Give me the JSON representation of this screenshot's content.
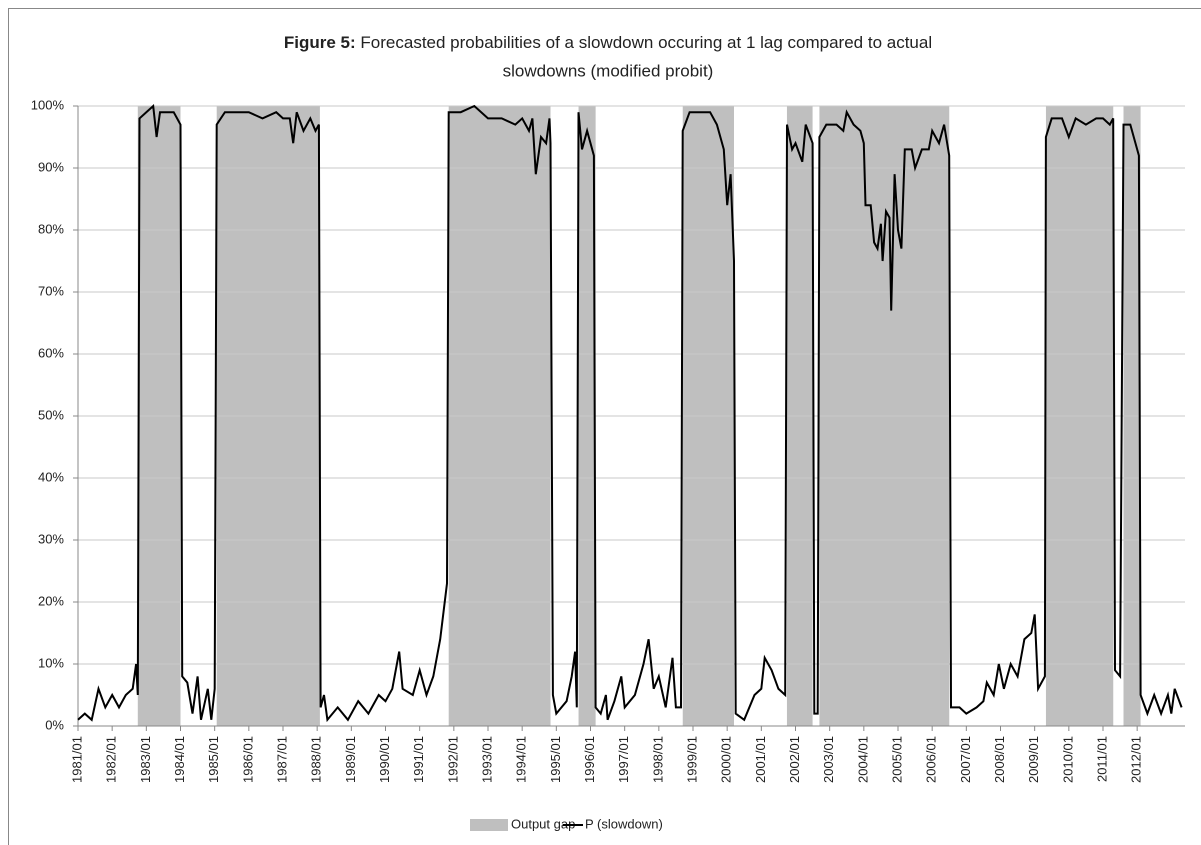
{
  "chart_data": {
    "type": "line",
    "title_label": "Figure 5:",
    "title": "Forecasted probabilities of a slowdown occuring at 1 lag compared to actual",
    "title_line2": "slowdowns (modified probit)",
    "xlim": [
      1981,
      2013.4
    ],
    "ylim": [
      0,
      100
    ],
    "grid": true,
    "legend": "bottom",
    "yticks": [
      {
        "value": 0,
        "label": "0%"
      },
      {
        "value": 10,
        "label": "10%"
      },
      {
        "value": 20,
        "label": "20%"
      },
      {
        "value": 30,
        "label": "30%"
      },
      {
        "value": 40,
        "label": "40%"
      },
      {
        "value": 50,
        "label": "50%"
      },
      {
        "value": 60,
        "label": "60%"
      },
      {
        "value": 70,
        "label": "70%"
      },
      {
        "value": 80,
        "label": "80%"
      },
      {
        "value": 90,
        "label": "90%"
      },
      {
        "value": 100,
        "label": "100%"
      }
    ],
    "xticks": [
      {
        "value": 1981,
        "label": "1981/01"
      },
      {
        "value": 1982,
        "label": "1982/01"
      },
      {
        "value": 1983,
        "label": "1983/01"
      },
      {
        "value": 1984,
        "label": "1984/01"
      },
      {
        "value": 1985,
        "label": "1985/01"
      },
      {
        "value": 1986,
        "label": "1986/01"
      },
      {
        "value": 1987,
        "label": "1987/01"
      },
      {
        "value": 1988,
        "label": "1988/01"
      },
      {
        "value": 1989,
        "label": "1989/01"
      },
      {
        "value": 1990,
        "label": "1990/01"
      },
      {
        "value": 1991,
        "label": "1991/01"
      },
      {
        "value": 1992,
        "label": "1992/01"
      },
      {
        "value": 1993,
        "label": "1993/01"
      },
      {
        "value": 1994,
        "label": "1994/01"
      },
      {
        "value": 1995,
        "label": "1995/01"
      },
      {
        "value": 1996,
        "label": "1996/01"
      },
      {
        "value": 1997,
        "label": "1997/01"
      },
      {
        "value": 1998,
        "label": "1998/01"
      },
      {
        "value": 1999,
        "label": "1999/01"
      },
      {
        "value": 2000,
        "label": "2000/01"
      },
      {
        "value": 2001,
        "label": "2001/01"
      },
      {
        "value": 2002,
        "label": "2002/01"
      },
      {
        "value": 2003,
        "label": "2003/01"
      },
      {
        "value": 2004,
        "label": "2004/01"
      },
      {
        "value": 2005,
        "label": "2005/01"
      },
      {
        "value": 2006,
        "label": "2006/01"
      },
      {
        "value": 2007,
        "label": "2007/01"
      },
      {
        "value": 2008,
        "label": "2008/01"
      },
      {
        "value": 2009,
        "label": "2009/01"
      },
      {
        "value": 2010,
        "label": "2010/01"
      },
      {
        "value": 2011,
        "label": "2011/01"
      },
      {
        "value": 2012,
        "label": "2012/01"
      }
    ],
    "series": [
      {
        "name": "Output gap",
        "color": "#bfbfbf",
        "periods": [
          [
            1982.75,
            1984.0
          ],
          [
            1985.06,
            1988.08
          ],
          [
            1991.85,
            1994.83
          ],
          [
            1995.65,
            1996.15
          ],
          [
            1998.7,
            2000.2
          ],
          [
            2001.75,
            2002.5
          ],
          [
            2002.7,
            2006.5
          ],
          [
            2009.33,
            2011.3
          ],
          [
            2011.6,
            2012.1
          ]
        ]
      },
      {
        "name": "P (slowdown)",
        "color": "#000000",
        "x": [
          1981.0,
          1981.2,
          1981.4,
          1981.6,
          1981.8,
          1982.0,
          1982.2,
          1982.4,
          1982.6,
          1982.7,
          1982.75,
          1982.8,
          1983.0,
          1983.2,
          1983.3,
          1983.4,
          1983.6,
          1983.8,
          1983.9,
          1984.0,
          1984.05,
          1984.2,
          1984.35,
          1984.5,
          1984.6,
          1984.8,
          1984.9,
          1985.0,
          1985.06,
          1985.3,
          1985.6,
          1986.0,
          1986.4,
          1986.8,
          1987.0,
          1987.2,
          1987.3,
          1987.4,
          1987.6,
          1987.8,
          1987.95,
          1988.05,
          1988.1,
          1988.2,
          1988.3,
          1988.6,
          1988.9,
          1989.2,
          1989.5,
          1989.8,
          1990.0,
          1990.2,
          1990.4,
          1990.5,
          1990.8,
          1991.0,
          1991.2,
          1991.4,
          1991.6,
          1991.8,
          1991.85,
          1992.2,
          1992.6,
          1993.0,
          1993.4,
          1993.8,
          1994.0,
          1994.2,
          1994.3,
          1994.4,
          1994.55,
          1994.7,
          1994.8,
          1994.83,
          1994.9,
          1995.0,
          1995.3,
          1995.45,
          1995.55,
          1995.6,
          1995.65,
          1995.75,
          1995.9,
          1996.1,
          1996.15,
          1996.3,
          1996.45,
          1996.5,
          1996.7,
          1996.9,
          1997.0,
          1997.3,
          1997.55,
          1997.7,
          1997.85,
          1998.0,
          1998.2,
          1998.4,
          1998.5,
          1998.65,
          1998.7,
          1998.9,
          1999.2,
          1999.5,
          1999.7,
          1999.9,
          2000.0,
          2000.1,
          2000.2,
          2000.25,
          2000.5,
          2000.8,
          2001.0,
          2001.1,
          2001.3,
          2001.5,
          2001.7,
          2001.75,
          2001.9,
          2002.0,
          2002.2,
          2002.3,
          2002.5,
          2002.55,
          2002.65,
          2002.7,
          2002.9,
          2003.2,
          2003.4,
          2003.5,
          2003.7,
          2003.9,
          2004.0,
          2004.05,
          2004.2,
          2004.3,
          2004.4,
          2004.5,
          2004.55,
          2004.65,
          2004.75,
          2004.8,
          2004.9,
          2005.0,
          2005.1,
          2005.2,
          2005.4,
          2005.5,
          2005.7,
          2005.9,
          2006.0,
          2006.2,
          2006.35,
          2006.5,
          2006.55,
          2006.8,
          2007.0,
          2007.3,
          2007.5,
          2007.6,
          2007.8,
          2007.95,
          2008.1,
          2008.3,
          2008.5,
          2008.7,
          2008.9,
          2009.0,
          2009.1,
          2009.3,
          2009.33,
          2009.5,
          2009.8,
          2010.0,
          2010.2,
          2010.5,
          2010.8,
          2011.0,
          2011.2,
          2011.3,
          2011.35,
          2011.5,
          2011.6,
          2011.8,
          2012.05,
          2012.1,
          2012.3,
          2012.5,
          2012.7,
          2012.9,
          2013.0,
          2013.1,
          2013.3
        ],
        "values": [
          1,
          2,
          1,
          6,
          3,
          5,
          3,
          5,
          6,
          10,
          5,
          98,
          99,
          100,
          95,
          99,
          99,
          99,
          98,
          97,
          8,
          7,
          2,
          8,
          1,
          6,
          1,
          6,
          97,
          99,
          99,
          99,
          98,
          99,
          98,
          98,
          94,
          99,
          96,
          98,
          96,
          97,
          3,
          5,
          1,
          3,
          1,
          4,
          2,
          5,
          4,
          6,
          12,
          6,
          5,
          9,
          5,
          8,
          14,
          23,
          99,
          99,
          100,
          98,
          98,
          97,
          98,
          96,
          98,
          89,
          95,
          94,
          98,
          94,
          5,
          2,
          4,
          8,
          12,
          3,
          99,
          93,
          96,
          92,
          3,
          2,
          5,
          1,
          4,
          8,
          3,
          5,
          10,
          14,
          6,
          8,
          3,
          11,
          3,
          3,
          96,
          99,
          99,
          99,
          97,
          93,
          84,
          89,
          75,
          2,
          1,
          5,
          6,
          11,
          9,
          6,
          5,
          97,
          93,
          94,
          91,
          97,
          94,
          2,
          2,
          95,
          97,
          97,
          96,
          99,
          97,
          96,
          94,
          84,
          84,
          78,
          77,
          81,
          75,
          83,
          82,
          67,
          89,
          80,
          77,
          93,
          93,
          90,
          93,
          93,
          96,
          94,
          97,
          92,
          3,
          3,
          2,
          3,
          4,
          7,
          5,
          10,
          6,
          10,
          8,
          14,
          15,
          18,
          6,
          8,
          95,
          98,
          98,
          95,
          98,
          97,
          98,
          98,
          97,
          98,
          9,
          8,
          97,
          97,
          92,
          5,
          2,
          5,
          2,
          5,
          2,
          6,
          3
        ]
      }
    ]
  }
}
